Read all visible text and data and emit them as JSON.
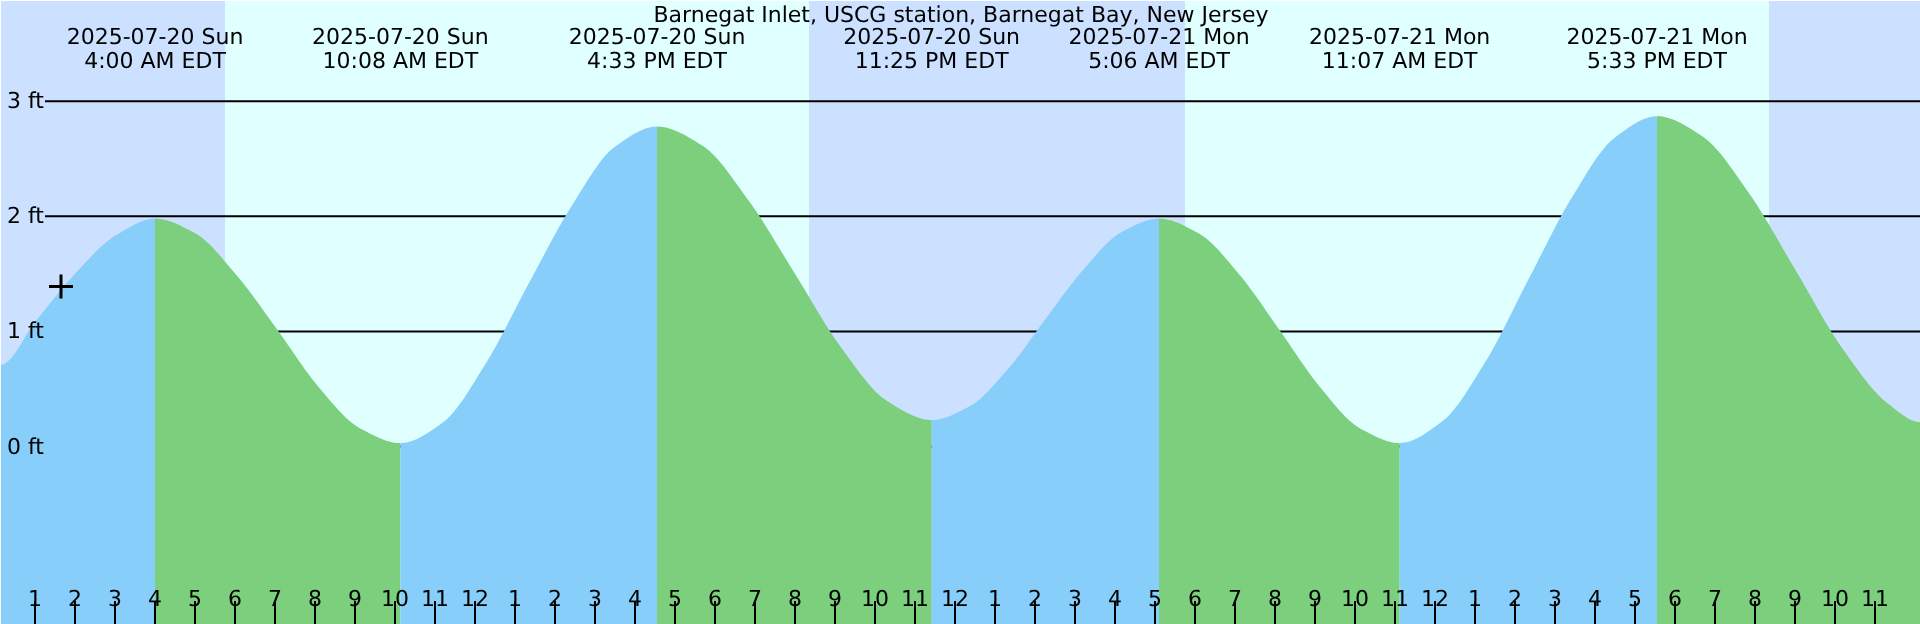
{
  "chart_data": {
    "type": "area",
    "title": "Barnegat Inlet, USCG station, Barnegat Bay, New Jersey",
    "annotations": [
      "2025-07-20 Sun\n4:00 AM EDT",
      "2025-07-20 Sun\n10:08 AM EDT",
      "2025-07-20 Sun\n4:33 PM EDT",
      "2025-07-20 Sun\n11:25 PM EDT",
      "2025-07-21 Mon\n5:06 AM EDT",
      "2025-07-21 Mon\n11:07 AM EDT",
      "2025-07-21 Mon\n5:33 PM EDT"
    ],
    "series": [
      {
        "color": "#87cefa",
        "x": [
          "2025-07-20T00:09",
          "2025-07-20T01:00",
          "2025-07-20T02:00",
          "2025-07-20T03:00",
          "2025-07-20T04:00"
        ],
        "values": [
          0.71,
          1.08,
          1.5,
          1.83,
          1.98
        ]
      },
      {
        "color": "#7ccf7c",
        "x": [
          "2025-07-20T04:00",
          "2025-07-20T05:01",
          "2025-07-20T06:02",
          "2025-07-20T07:04",
          "2025-07-20T08:05",
          "2025-07-20T09:07",
          "2025-07-20T10:08"
        ],
        "values": [
          1.98,
          1.85,
          1.49,
          1.01,
          0.52,
          0.16,
          0.03
        ]
      },
      {
        "color": "#87cefa",
        "x": [
          "2025-07-20T10:08",
          "2025-07-20T11:12",
          "2025-07-20T12:16",
          "2025-07-20T13:20",
          "2025-07-20T14:25",
          "2025-07-20T15:29",
          "2025-07-20T16:33"
        ],
        "values": [
          0.03,
          0.21,
          0.72,
          1.41,
          2.09,
          2.6,
          2.78
        ]
      },
      {
        "color": "#7ccf7c",
        "x": [
          "2025-07-20T16:33",
          "2025-07-20T17:42",
          "2025-07-20T18:50",
          "2025-07-20T19:59",
          "2025-07-20T21:08",
          "2025-07-20T22:17",
          "2025-07-20T23:25"
        ],
        "values": [
          2.78,
          2.61,
          2.14,
          1.51,
          0.87,
          0.4,
          0.23
        ]
      },
      {
        "color": "#87cefa",
        "x": [
          "2025-07-20T23:25",
          "2025-07-21T00:22",
          "2025-07-21T01:19",
          "2025-07-21T02:16",
          "2025-07-21T03:13",
          "2025-07-21T04:09",
          "2025-07-21T05:06"
        ],
        "values": [
          0.23,
          0.35,
          0.67,
          1.11,
          1.54,
          1.86,
          1.98
        ]
      },
      {
        "color": "#7ccf7c",
        "x": [
          "2025-07-21T05:06",
          "2025-07-21T06:06",
          "2025-07-21T07:07",
          "2025-07-21T08:07",
          "2025-07-21T09:07",
          "2025-07-21T10:07",
          "2025-07-21T11:07"
        ],
        "values": [
          1.98,
          1.85,
          1.49,
          1.01,
          0.52,
          0.16,
          0.03
        ]
      },
      {
        "color": "#87cefa",
        "x": [
          "2025-07-21T11:07",
          "2025-07-21T12:11",
          "2025-07-21T13:16",
          "2025-07-21T14:20",
          "2025-07-21T15:25",
          "2025-07-21T16:29",
          "2025-07-21T17:33"
        ],
        "values": [
          0.03,
          0.22,
          0.74,
          1.45,
          2.16,
          2.68,
          2.87
        ]
      },
      {
        "color": "#7ccf7c",
        "x": [
          "2025-07-21T17:33",
          "2025-07-21T18:42",
          "2025-07-21T19:51",
          "2025-07-21T21:00",
          "2025-07-21T22:09",
          "2025-07-21T23:18",
          "2025-07-22T00:09"
        ],
        "values": [
          2.87,
          2.69,
          2.2,
          1.54,
          0.87,
          0.38,
          0.21
        ]
      },
      {
        "type": "scatter",
        "marker": "cross",
        "color": "#000000",
        "x": [
          "2025-07-20T01:39"
        ],
        "values": [
          1.39
        ]
      }
    ],
    "bands": [
      {
        "axis": "x",
        "from": "2025-07-20T00:09",
        "to": "2025-07-20T05:45",
        "color": "#cce0ff"
      },
      {
        "axis": "x",
        "from": "2025-07-20T20:21",
        "to": "2025-07-21T05:45",
        "color": "#cce0ff"
      },
      {
        "axis": "x",
        "from": "2025-07-21T20:21",
        "to": "2025-07-22T00:09",
        "color": "#cce0ff"
      }
    ],
    "xlim": [
      "2025-07-20T00:09",
      "2025-07-22T00:09"
    ],
    "ylim": [
      -1.55,
      3.87
    ],
    "xticks": [
      {
        "value": "2025-07-20T01:00",
        "label": "1"
      },
      {
        "value": "2025-07-20T02:00",
        "label": "2"
      },
      {
        "value": "2025-07-20T03:00",
        "label": "3"
      },
      {
        "value": "2025-07-20T04:00",
        "label": "4"
      },
      {
        "value": "2025-07-20T05:00",
        "label": "5"
      },
      {
        "value": "2025-07-20T06:00",
        "label": "6"
      },
      {
        "value": "2025-07-20T07:00",
        "label": "7"
      },
      {
        "value": "2025-07-20T08:00",
        "label": "8"
      },
      {
        "value": "2025-07-20T09:00",
        "label": "9"
      },
      {
        "value": "2025-07-20T10:00",
        "label": "10"
      },
      {
        "value": "2025-07-20T11:00",
        "label": "11"
      },
      {
        "value": "2025-07-20T12:00",
        "label": "12"
      },
      {
        "value": "2025-07-20T13:00",
        "label": "1"
      },
      {
        "value": "2025-07-20T14:00",
        "label": "2"
      },
      {
        "value": "2025-07-20T15:00",
        "label": "3"
      },
      {
        "value": "2025-07-20T16:00",
        "label": "4"
      },
      {
        "value": "2025-07-20T17:00",
        "label": "5"
      },
      {
        "value": "2025-07-20T18:00",
        "label": "6"
      },
      {
        "value": "2025-07-20T19:00",
        "label": "7"
      },
      {
        "value": "2025-07-20T20:00",
        "label": "8"
      },
      {
        "value": "2025-07-20T21:00",
        "label": "9"
      },
      {
        "value": "2025-07-20T22:00",
        "label": "10"
      },
      {
        "value": "2025-07-20T23:00",
        "label": "11"
      },
      {
        "value": "2025-07-21T00:00",
        "label": "12"
      },
      {
        "value": "2025-07-21T01:00",
        "label": "1"
      },
      {
        "value": "2025-07-21T02:00",
        "label": "2"
      },
      {
        "value": "2025-07-21T03:00",
        "label": "3"
      },
      {
        "value": "2025-07-21T04:00",
        "label": "4"
      },
      {
        "value": "2025-07-21T05:00",
        "label": "5"
      },
      {
        "value": "2025-07-21T06:00",
        "label": "6"
      },
      {
        "value": "2025-07-21T07:00",
        "label": "7"
      },
      {
        "value": "2025-07-21T08:00",
        "label": "8"
      },
      {
        "value": "2025-07-21T09:00",
        "label": "9"
      },
      {
        "value": "2025-07-21T10:00",
        "label": "10"
      },
      {
        "value": "2025-07-21T11:00",
        "label": "11"
      },
      {
        "value": "2025-07-21T12:00",
        "label": "12"
      },
      {
        "value": "2025-07-21T13:00",
        "label": "1"
      },
      {
        "value": "2025-07-21T14:00",
        "label": "2"
      },
      {
        "value": "2025-07-21T15:00",
        "label": "3"
      },
      {
        "value": "2025-07-21T16:00",
        "label": "4"
      },
      {
        "value": "2025-07-21T17:00",
        "label": "5"
      },
      {
        "value": "2025-07-21T18:00",
        "label": "6"
      },
      {
        "value": "2025-07-21T19:00",
        "label": "7"
      },
      {
        "value": "2025-07-21T20:00",
        "label": "8"
      },
      {
        "value": "2025-07-21T21:00",
        "label": "9"
      },
      {
        "value": "2025-07-21T22:00",
        "label": "10"
      },
      {
        "value": "2025-07-21T23:00",
        "label": "11"
      }
    ],
    "yticks": [
      {
        "value": 0,
        "label": "0 ft"
      },
      {
        "value": 1,
        "label": "1 ft"
      },
      {
        "value": 2,
        "label": "2 ft"
      },
      {
        "value": 3,
        "label": "3 ft"
      }
    ],
    "grid": "y"
  }
}
